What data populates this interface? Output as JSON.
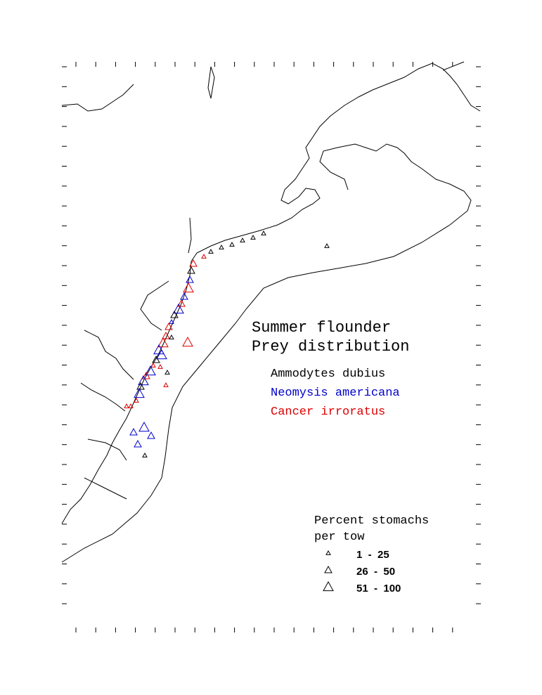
{
  "title": {
    "line1": "Summer flounder",
    "line2": "Prey distribution"
  },
  "species": [
    {
      "name": "Ammodytes dubius",
      "color": "#000000"
    },
    {
      "name": "Neomysis americana",
      "color": "#0000cc"
    },
    {
      "name": "Cancer irroratus",
      "color": "#dd0000"
    }
  ],
  "size_legend": {
    "title_line1": "Percent stomachs",
    "title_line2": "per tow",
    "classes": [
      "1  -  25",
      "26  -  50",
      "51  -  100"
    ]
  }
}
